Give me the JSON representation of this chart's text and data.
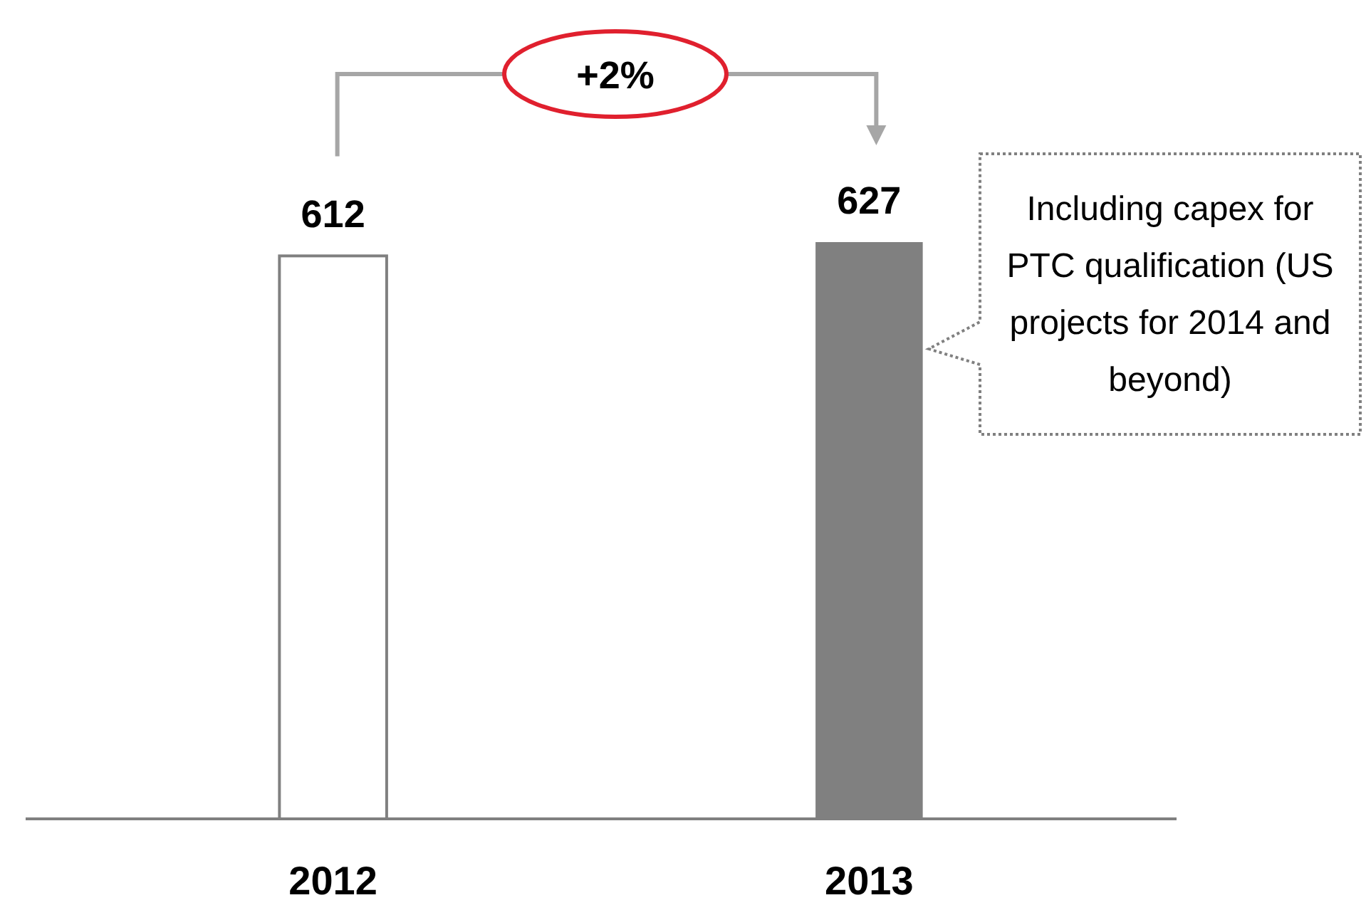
{
  "chart_data": {
    "type": "bar",
    "categories": [
      "2012",
      "2013"
    ],
    "values": [
      612,
      627
    ],
    "colors": [
      "#ffffff",
      "#808080"
    ],
    "data_labels": true,
    "tick_labels": "x",
    "annotations": [
      "+2%",
      "Including capex for PTC qualification (US projects for 2014 and beyond)"
    ]
  }
}
